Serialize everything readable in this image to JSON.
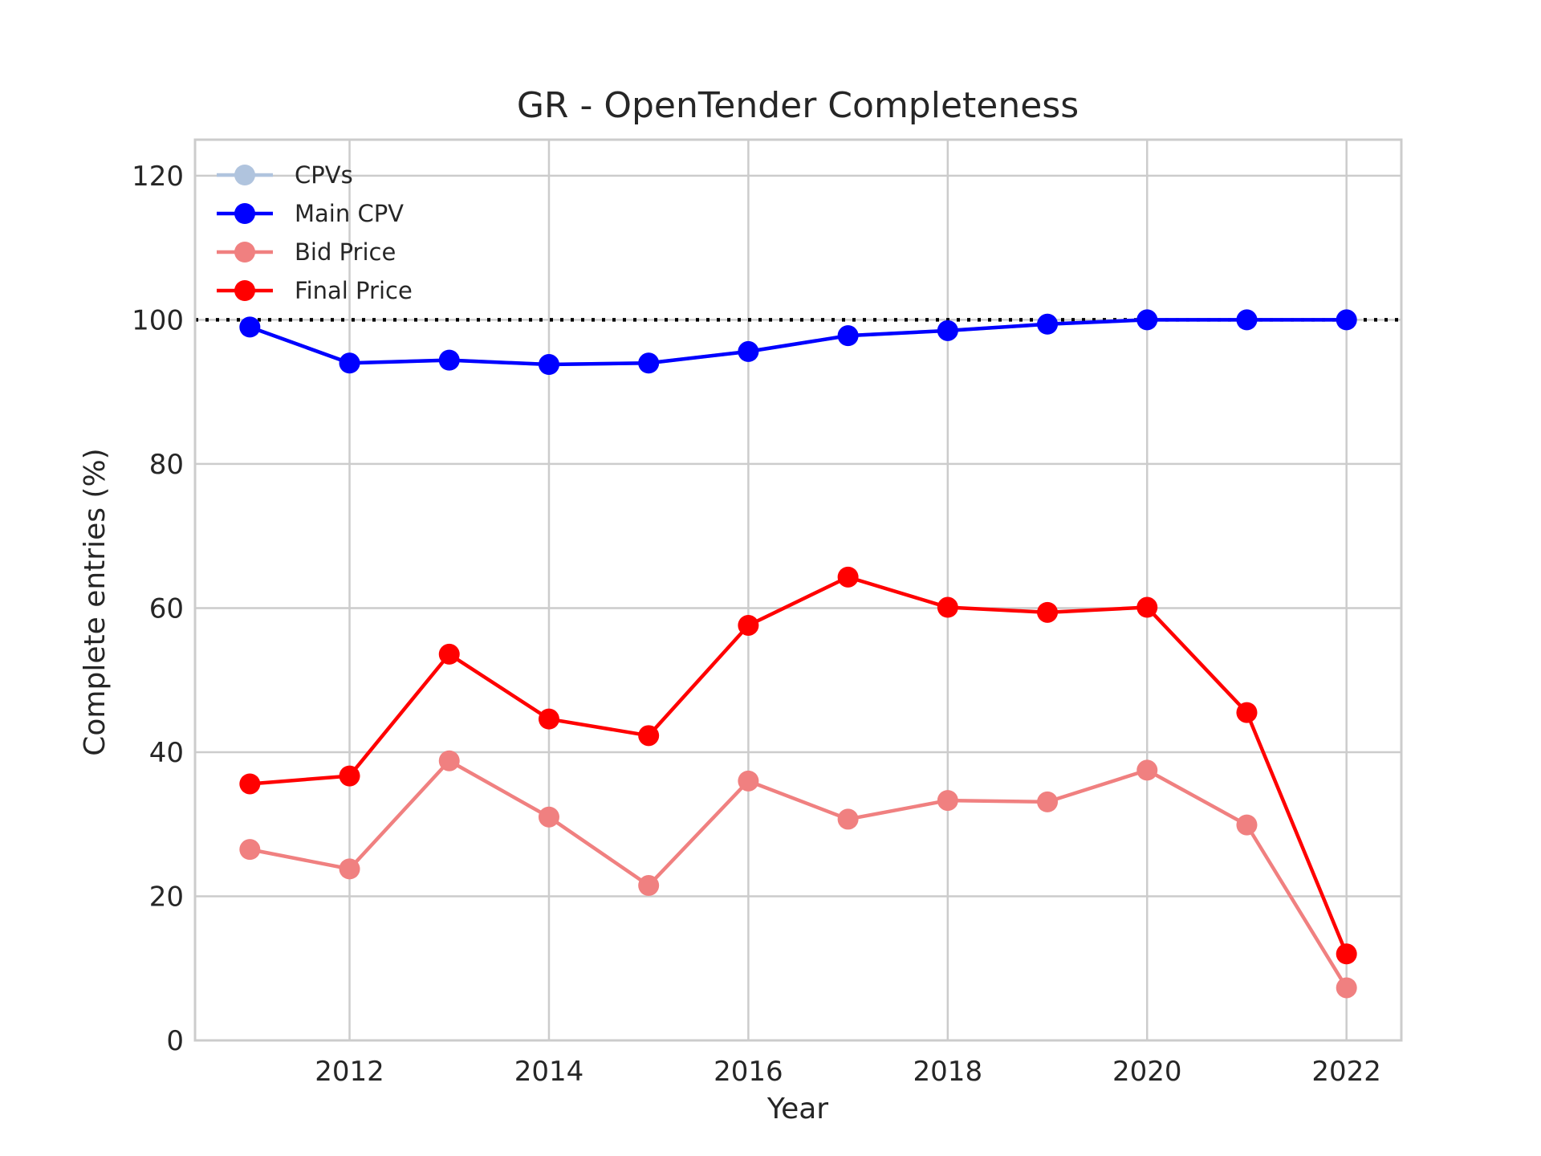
{
  "chart_data": {
    "type": "line",
    "title": "GR - OpenTender Completeness",
    "xlabel": "Year",
    "ylabel": "Complete entries (%)",
    "x": [
      2011,
      2012,
      2013,
      2014,
      2015,
      2016,
      2017,
      2018,
      2019,
      2020,
      2021,
      2022
    ],
    "xticks": [
      2012,
      2014,
      2016,
      2018,
      2020,
      2022
    ],
    "yticks": [
      0,
      20,
      40,
      60,
      80,
      100,
      120
    ],
    "xlim": [
      2010.45,
      2022.55
    ],
    "ylim": [
      0,
      125
    ],
    "reference_line": {
      "y": 100,
      "style": "dotted",
      "color": "#000000"
    },
    "grid": true,
    "legend_position": "top-left",
    "series": [
      {
        "name": "CPVs",
        "color": "#b0c4de",
        "values": [
          99,
          94,
          94.4,
          93.8,
          94,
          95.6,
          97.8,
          98.5,
          99.4,
          100,
          100,
          100
        ]
      },
      {
        "name": "Main CPV",
        "color": "#0000ff",
        "values": [
          99,
          94,
          94.4,
          93.8,
          94,
          95.6,
          97.8,
          98.5,
          99.4,
          100,
          100,
          100
        ]
      },
      {
        "name": "Bid Price",
        "color": "#f08080",
        "values": [
          26.5,
          23.8,
          38.8,
          31,
          21.5,
          36,
          30.7,
          33.3,
          33.1,
          37.5,
          29.9,
          7.3
        ]
      },
      {
        "name": "Final Price",
        "color": "#ff0000",
        "values": [
          35.6,
          36.7,
          53.6,
          44.6,
          42.3,
          57.6,
          64.3,
          60.1,
          59.4,
          60.1,
          45.5,
          12
        ]
      }
    ]
  }
}
